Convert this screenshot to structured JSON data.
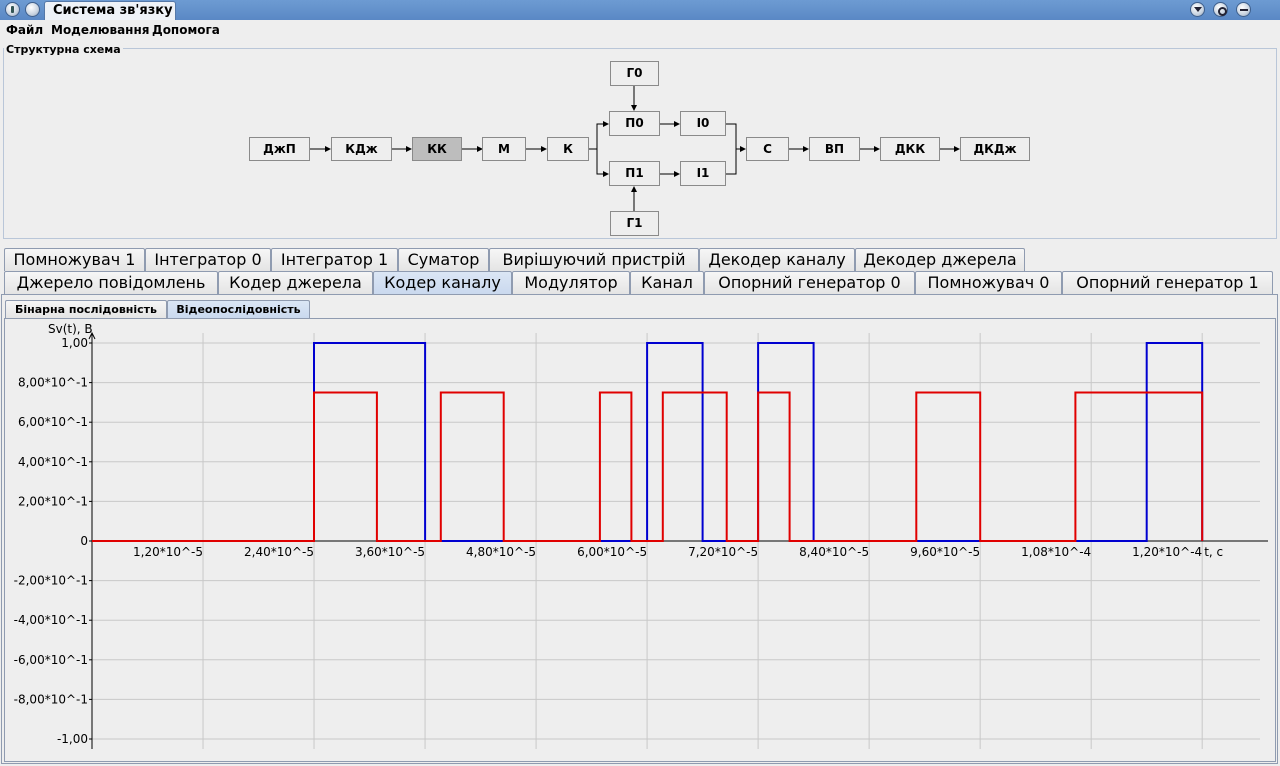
{
  "window": {
    "title": "Система зв'язку"
  },
  "menu": [
    "Файл",
    "Моделювання",
    "Допомога"
  ],
  "structure": {
    "legend": "Структурна схема",
    "blocks": {
      "djp": "ДжП",
      "kdj": "КДж",
      "kk": "КК",
      "m": "М",
      "k": "К",
      "g0": "Г0",
      "p0": "П0",
      "i0": "І0",
      "p1": "П1",
      "i1": "І1",
      "g1": "Г1",
      "s": "С",
      "vp": "ВП",
      "dkk": "ДКК",
      "dkdj": "ДКДж"
    },
    "selected": "КК"
  },
  "tabs_row1": [
    "Помножувач 1",
    "Інтегратор 0",
    "Інтегратор 1",
    "Суматор",
    "Вирішуючий пристрій",
    "Декодер каналу",
    "Декодер джерела"
  ],
  "tabs_row2": [
    "Джерело повідомлень",
    "Кодер джерела",
    "Кодер каналу",
    "Модулятор",
    "Канал",
    "Опорний генератор 0",
    "Помножувач 0",
    "Опорний генератор 1"
  ],
  "active_tab": "Кодер каналу",
  "subtabs": [
    "Бінарна послідовність",
    "Відеопослідовність"
  ],
  "active_subtab": "Відеопослідовність",
  "chart_data": {
    "type": "line",
    "ylabel": "Sv(t), В",
    "xlabel": "t, c",
    "xlim": [
      0,
      0.0001256
    ],
    "ylim": [
      -1.0,
      1.0
    ],
    "grid": true,
    "x_ticks": [
      1.2e-05,
      2.4e-05,
      3.6e-05,
      4.8e-05,
      6e-05,
      7.2e-05,
      8.4e-05,
      9.6e-05,
      0.000108,
      0.00012
    ],
    "x_tick_labels": [
      "1,20*10^-5",
      "2,40*10^-5",
      "3,60*10^-5",
      "4,80*10^-5",
      "6,00*10^-5",
      "7,20*10^-5",
      "8,40*10^-5",
      "9,60*10^-5",
      "1,08*10^-4",
      "1,20*10^-4"
    ],
    "y_ticks": [
      1.0,
      0.8,
      0.6,
      0.4,
      0.2,
      0,
      -0.2,
      -0.4,
      -0.6,
      -0.8,
      -1.0
    ],
    "y_tick_labels": [
      "1,00",
      "8,00*10^-1",
      "6,00*10^-1",
      "4,00*10^-1",
      "2,00*10^-1",
      "0",
      "-2,00*10^-1",
      "-4,00*10^-1",
      "-6,00*10^-1",
      "-8,00*10^-1",
      "-1,00"
    ],
    "series": [
      {
        "color": "#0000d0",
        "points": [
          [
            0,
            0
          ],
          [
            2.4e-05,
            0
          ],
          [
            2.4e-05,
            1
          ],
          [
            3.6e-05,
            1
          ],
          [
            3.6e-05,
            0
          ],
          [
            6e-05,
            0
          ],
          [
            6e-05,
            1
          ],
          [
            6.6e-05,
            1
          ],
          [
            6.6e-05,
            0
          ],
          [
            7.2e-05,
            0
          ],
          [
            7.2e-05,
            1
          ],
          [
            7.8e-05,
            1
          ],
          [
            7.8e-05,
            0
          ],
          [
            0.000114,
            0
          ],
          [
            0.000114,
            1
          ],
          [
            0.00012,
            1
          ],
          [
            0.00012,
            0
          ]
        ]
      },
      {
        "color": "#e00000",
        "points": [
          [
            0,
            0
          ],
          [
            2.4e-05,
            0
          ],
          [
            2.4e-05,
            0.75
          ],
          [
            3.08e-05,
            0.75
          ],
          [
            3.08e-05,
            0
          ],
          [
            3.77e-05,
            0
          ],
          [
            3.77e-05,
            0.75
          ],
          [
            4.45e-05,
            0.75
          ],
          [
            4.45e-05,
            0
          ],
          [
            5.49e-05,
            0
          ],
          [
            5.49e-05,
            0.75
          ],
          [
            5.83e-05,
            0.75
          ],
          [
            5.83e-05,
            0
          ],
          [
            6.17e-05,
            0
          ],
          [
            6.17e-05,
            0.75
          ],
          [
            6.86e-05,
            0.75
          ],
          [
            6.86e-05,
            0
          ],
          [
            7.2e-05,
            0
          ],
          [
            7.2e-05,
            0.75
          ],
          [
            7.54e-05,
            0.75
          ],
          [
            7.54e-05,
            0
          ],
          [
            8.91e-05,
            0
          ],
          [
            8.91e-05,
            0.75
          ],
          [
            9.6e-05,
            0.75
          ],
          [
            9.6e-05,
            0
          ],
          [
            0.0001063,
            0
          ],
          [
            0.0001063,
            0.75
          ],
          [
            0.00012,
            0.75
          ],
          [
            0.00012,
            0
          ]
        ]
      }
    ]
  }
}
